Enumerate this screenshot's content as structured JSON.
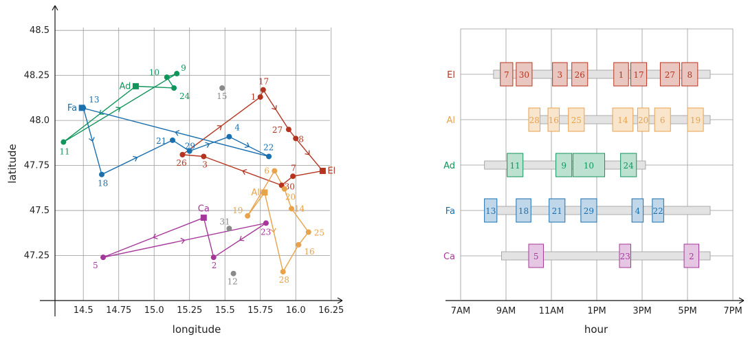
{
  "colors": {
    "El": "#b5341f",
    "Al": "#e8a24a",
    "Ad": "#10955a",
    "Fa": "#1a6faf",
    "Ca": "#a6379a",
    "other": "#8a8a8a",
    "bar_fill": "#e3e3e3",
    "grid": "#999999"
  },
  "map_plot": {
    "xlabel": "longitude",
    "ylabel": "latitude",
    "xlim": [
      14.3,
      16.3
    ],
    "ylim": [
      47.0,
      48.6
    ],
    "xticks": [
      "14.5",
      "14.75",
      "15.0",
      "15.25",
      "15.5",
      "15.75",
      "16.0",
      "16.25"
    ],
    "yticks": [
      "47.25",
      "47.5",
      "47.75",
      "48.0",
      "48.25",
      "48.5"
    ],
    "agents": [
      {
        "key": "El",
        "label": "El",
        "home": [
          16.19,
          47.72
        ],
        "label_side": "right"
      },
      {
        "key": "Al",
        "label": "Al",
        "home": [
          15.78,
          47.6
        ],
        "label_side": "left"
      },
      {
        "key": "Ad",
        "label": "Ad",
        "home": [
          14.87,
          48.19
        ],
        "label_side": "left"
      },
      {
        "key": "Fa",
        "label": "Fa",
        "home": [
          14.49,
          48.07
        ],
        "label_side": "left"
      },
      {
        "key": "Ca",
        "label": "Ca",
        "home": [
          15.35,
          47.46
        ],
        "label_side": "top"
      }
    ],
    "points": [
      {
        "id": "1",
        "x": 15.75,
        "y": 48.13,
        "agent": "El",
        "dx": -14,
        "dy": 4
      },
      {
        "id": "3",
        "x": 15.35,
        "y": 47.8,
        "agent": "El",
        "dx": -2,
        "dy": 16
      },
      {
        "id": "7",
        "x": 15.98,
        "y": 47.69,
        "agent": "El",
        "dx": -3,
        "dy": -8
      },
      {
        "id": "8",
        "x": 16.0,
        "y": 47.9,
        "agent": "El",
        "dx": 4,
        "dy": 5
      },
      {
        "id": "17",
        "x": 15.77,
        "y": 48.17,
        "agent": "El",
        "dx": -7,
        "dy": -8
      },
      {
        "id": "26",
        "x": 15.2,
        "y": 47.81,
        "agent": "El",
        "dx": -9,
        "dy": 16
      },
      {
        "id": "27",
        "x": 15.95,
        "y": 47.95,
        "agent": "El",
        "dx": -24,
        "dy": 5
      },
      {
        "id": "30",
        "x": 15.9,
        "y": 47.64,
        "agent": "El",
        "dx": 4,
        "dy": 6
      },
      {
        "id": "6",
        "x": 15.85,
        "y": 47.72,
        "agent": "Al",
        "dx": -15,
        "dy": 4
      },
      {
        "id": "14",
        "x": 15.97,
        "y": 47.51,
        "agent": "Al",
        "dx": 4,
        "dy": 4
      },
      {
        "id": "16",
        "x": 16.02,
        "y": 47.31,
        "agent": "Al",
        "dx": 8,
        "dy": 14
      },
      {
        "id": "19",
        "x": 15.66,
        "y": 47.47,
        "agent": "Al",
        "dx": -22,
        "dy": -4
      },
      {
        "id": "20",
        "x": 15.92,
        "y": 47.62,
        "agent": "Al",
        "dx": 1,
        "dy": 16
      },
      {
        "id": "25",
        "x": 16.09,
        "y": 47.38,
        "agent": "Al",
        "dx": 8,
        "dy": 5
      },
      {
        "id": "28",
        "x": 15.91,
        "y": 47.16,
        "agent": "Al",
        "dx": -6,
        "dy": 16
      },
      {
        "id": "9",
        "x": 15.16,
        "y": 48.26,
        "agent": "Ad",
        "dx": 6,
        "dy": -4
      },
      {
        "id": "10",
        "x": 15.09,
        "y": 48.24,
        "agent": "Ad",
        "dx": -26,
        "dy": -3
      },
      {
        "id": "11",
        "x": 14.36,
        "y": 47.88,
        "agent": "Ad",
        "dx": -6,
        "dy": 18
      },
      {
        "id": "24",
        "x": 15.14,
        "y": 48.18,
        "agent": "Ad",
        "dx": 8,
        "dy": 16
      },
      {
        "id": "4",
        "x": 15.53,
        "y": 47.91,
        "agent": "Fa",
        "dx": 8,
        "dy": -9
      },
      {
        "id": "13",
        "x": 14.5,
        "y": 48.07,
        "agent": "Fa",
        "dx": 8,
        "dy": -8
      },
      {
        "id": "18",
        "x": 14.63,
        "y": 47.7,
        "agent": "Fa",
        "dx": -6,
        "dy": 17
      },
      {
        "id": "21",
        "x": 15.13,
        "y": 47.89,
        "agent": "Fa",
        "dx": -24,
        "dy": 5
      },
      {
        "id": "22",
        "x": 15.81,
        "y": 47.8,
        "agent": "Fa",
        "dx": -8,
        "dy": -9
      },
      {
        "id": "29",
        "x": 15.25,
        "y": 47.83,
        "agent": "Fa",
        "dx": -7,
        "dy": -3
      },
      {
        "id": "2",
        "x": 15.42,
        "y": 47.24,
        "agent": "Ca",
        "dx": -3,
        "dy": 16
      },
      {
        "id": "5",
        "x": 14.64,
        "y": 47.24,
        "agent": "Ca",
        "dx": -15,
        "dy": 16
      },
      {
        "id": "23",
        "x": 15.79,
        "y": 47.43,
        "agent": "Ca",
        "dx": -8,
        "dy": 17
      },
      {
        "id": "12",
        "x": 15.56,
        "y": 47.15,
        "agent": "other",
        "dx": -9,
        "dy": 16
      },
      {
        "id": "15",
        "x": 15.48,
        "y": 48.18,
        "agent": "other",
        "dx": -8,
        "dy": 16
      },
      {
        "id": "31",
        "x": 15.53,
        "y": 47.4,
        "agent": "other",
        "dx": -14,
        "dy": -6
      }
    ],
    "routes": [
      {
        "agent": "El",
        "stops": [
          "home",
          "7",
          "30",
          "3",
          "26",
          "1",
          "17",
          "27",
          "8",
          "home"
        ]
      },
      {
        "agent": "Al",
        "stops": [
          "home",
          "28",
          "16",
          "25",
          "14",
          "20",
          "6",
          "19",
          "home"
        ]
      },
      {
        "agent": "Ad",
        "stops": [
          "home",
          "11",
          "9",
          "10",
          "24",
          "home"
        ]
      },
      {
        "agent": "Fa",
        "stops": [
          "home",
          "13",
          "18",
          "21",
          "29",
          "4",
          "22",
          "home"
        ]
      },
      {
        "agent": "Ca",
        "stops": [
          "home",
          "5",
          "23",
          "2",
          "home"
        ]
      }
    ]
  },
  "schedule_plot": {
    "xlabel": "hour",
    "xlim": [
      7,
      19
    ],
    "xticks": [
      {
        "value": 7,
        "label": "7AM"
      },
      {
        "value": 9,
        "label": "9AM"
      },
      {
        "value": 11,
        "label": "11AM"
      },
      {
        "value": 13,
        "label": "1PM"
      },
      {
        "value": 15,
        "label": "3PM"
      },
      {
        "value": 17,
        "label": "5PM"
      },
      {
        "value": 19,
        "label": "7PM"
      }
    ],
    "rows": [
      {
        "agent": "El",
        "label": "El",
        "shift": [
          8.45,
          18.0
        ],
        "tasks": [
          {
            "id": "7",
            "start": 8.75,
            "end": 9.3
          },
          {
            "id": "30",
            "start": 9.45,
            "end": 10.15
          },
          {
            "id": "3",
            "start": 11.05,
            "end": 11.7
          },
          {
            "id": "26",
            "start": 11.9,
            "end": 12.6
          },
          {
            "id": "1",
            "start": 13.75,
            "end": 14.4
          },
          {
            "id": "17",
            "start": 14.5,
            "end": 15.2
          },
          {
            "id": "27",
            "start": 15.8,
            "end": 16.65
          },
          {
            "id": "8",
            "start": 16.75,
            "end": 17.45
          }
        ]
      },
      {
        "agent": "Al",
        "label": "Al",
        "shift": [
          10.0,
          18.0
        ],
        "tasks": [
          {
            "id": "28",
            "start": 10.0,
            "end": 10.5
          },
          {
            "id": "16",
            "start": 10.85,
            "end": 11.35
          },
          {
            "id": "25",
            "start": 11.75,
            "end": 12.45
          },
          {
            "id": "14",
            "start": 13.7,
            "end": 14.6
          },
          {
            "id": "20",
            "start": 14.8,
            "end": 15.3
          },
          {
            "id": "6",
            "start": 15.55,
            "end": 16.25
          },
          {
            "id": "19",
            "start": 17.0,
            "end": 17.7
          }
        ]
      },
      {
        "agent": "Ad",
        "label": "Ad",
        "shift": [
          8.05,
          15.15
        ],
        "tasks": [
          {
            "id": "11",
            "start": 9.05,
            "end": 9.75
          },
          {
            "id": "9",
            "start": 11.2,
            "end": 11.9
          },
          {
            "id": "10",
            "start": 11.95,
            "end": 13.35
          },
          {
            "id": "24",
            "start": 14.05,
            "end": 14.75
          }
        ]
      },
      {
        "agent": "Fa",
        "label": "Fa",
        "shift": [
          8.1,
          18.0
        ],
        "tasks": [
          {
            "id": "13",
            "start": 8.05,
            "end": 8.6
          },
          {
            "id": "18",
            "start": 9.45,
            "end": 10.1
          },
          {
            "id": "21",
            "start": 10.9,
            "end": 11.6
          },
          {
            "id": "29",
            "start": 12.3,
            "end": 13.0
          },
          {
            "id": "4",
            "start": 14.55,
            "end": 15.05
          },
          {
            "id": "22",
            "start": 15.45,
            "end": 15.95
          }
        ]
      },
      {
        "agent": "Ca",
        "label": "Ca",
        "shift": [
          8.8,
          18.0
        ],
        "tasks": [
          {
            "id": "5",
            "start": 10.0,
            "end": 10.65
          },
          {
            "id": "23",
            "start": 14.0,
            "end": 14.5
          },
          {
            "id": "2",
            "start": 16.85,
            "end": 17.5
          }
        ]
      }
    ]
  }
}
